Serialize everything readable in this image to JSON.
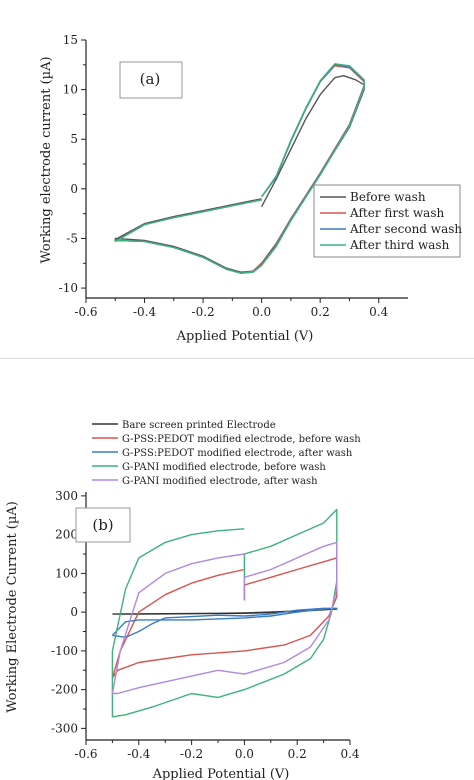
{
  "chart_data": [
    {
      "type": "line",
      "panel_label": "(a)",
      "xlabel": "Applied Potential (V)",
      "ylabel": "Working electrode current (µA)",
      "xlim": [
        -0.6,
        0.5
      ],
      "ylim": [
        -11,
        15
      ],
      "xticks": [
        -0.6,
        -0.4,
        -0.2,
        0.0,
        0.2,
        0.4
      ],
      "xticklabels": [
        "-0.6",
        "-0.4",
        "-0.2",
        "0.0",
        "0.2",
        "0.4"
      ],
      "yticks": [
        -10,
        -5,
        0,
        5,
        10,
        15
      ],
      "yticklabels": [
        "-10",
        "-5",
        "0",
        "5",
        "10",
        "15"
      ],
      "legend_position": "right",
      "series": [
        {
          "name": "Before wash",
          "color": "#555555",
          "x": [
            0.0,
            0.05,
            0.1,
            0.15,
            0.2,
            0.25,
            0.28,
            0.32,
            0.35,
            0.35,
            0.3,
            0.2,
            0.1,
            0.05,
            0.0,
            -0.03,
            -0.07,
            -0.12,
            -0.2,
            -0.3,
            -0.4,
            -0.5,
            -0.5,
            -0.4,
            -0.3,
            -0.2,
            -0.1,
            -0.05,
            0.0
          ],
          "y": [
            -1.8,
            1.0,
            4.0,
            7.0,
            9.5,
            11.2,
            11.4,
            11.0,
            10.5,
            10.0,
            6.2,
            1.5,
            -3.0,
            -5.5,
            -7.5,
            -8.3,
            -8.4,
            -8.0,
            -6.8,
            -5.8,
            -5.2,
            -5.0,
            -5.1,
            -3.5,
            -2.8,
            -2.2,
            -1.6,
            -1.3,
            -1.0
          ]
        },
        {
          "name": "After first wash",
          "color": "#d9534f",
          "x": [
            0.0,
            0.05,
            0.1,
            0.15,
            0.2,
            0.25,
            0.3,
            0.35,
            0.35,
            0.3,
            0.2,
            0.1,
            0.05,
            0.0,
            -0.03,
            -0.07,
            -0.12,
            -0.2,
            -0.3,
            -0.4,
            -0.5,
            -0.5,
            -0.4,
            -0.3,
            -0.2,
            -0.1,
            -0.05,
            0.0
          ],
          "y": [
            -0.8,
            1.2,
            4.8,
            8.0,
            10.8,
            12.4,
            12.2,
            10.8,
            10.4,
            6.5,
            1.6,
            -3.0,
            -5.6,
            -7.6,
            -8.3,
            -8.5,
            -8.1,
            -6.9,
            -5.9,
            -5.3,
            -5.2,
            -5.3,
            -3.6,
            -2.9,
            -2.3,
            -1.7,
            -1.4,
            -1.1
          ]
        },
        {
          "name": "After second wash",
          "color": "#3a7cc6",
          "x": [
            0.0,
            0.05,
            0.1,
            0.15,
            0.2,
            0.25,
            0.3,
            0.35,
            0.35,
            0.3,
            0.2,
            0.1,
            0.05,
            0.0,
            -0.03,
            -0.07,
            -0.12,
            -0.2,
            -0.3,
            -0.4,
            -0.5,
            -0.5,
            -0.4,
            -0.3,
            -0.2,
            -0.1,
            -0.05,
            0.0
          ],
          "y": [
            -0.8,
            1.2,
            4.8,
            8.0,
            10.8,
            12.5,
            12.3,
            10.9,
            10.3,
            6.4,
            1.5,
            -3.1,
            -5.7,
            -7.7,
            -8.4,
            -8.5,
            -8.1,
            -6.9,
            -5.9,
            -5.3,
            -5.2,
            -5.3,
            -3.6,
            -2.9,
            -2.3,
            -1.7,
            -1.4,
            -1.1
          ]
        },
        {
          "name": "After third wash",
          "color": "#3db37a",
          "x": [
            0.0,
            0.05,
            0.1,
            0.15,
            0.2,
            0.25,
            0.3,
            0.35,
            0.35,
            0.3,
            0.2,
            0.1,
            0.05,
            0.0,
            -0.03,
            -0.07,
            -0.12,
            -0.2,
            -0.3,
            -0.4,
            -0.5,
            -0.5,
            -0.4,
            -0.3,
            -0.2,
            -0.1,
            -0.05,
            0.0
          ],
          "y": [
            -0.8,
            1.3,
            4.9,
            8.1,
            10.9,
            12.6,
            12.4,
            11.0,
            10.2,
            6.3,
            1.4,
            -3.2,
            -5.8,
            -7.7,
            -8.4,
            -8.5,
            -8.1,
            -6.9,
            -5.9,
            -5.3,
            -5.2,
            -5.3,
            -3.6,
            -2.9,
            -2.3,
            -1.7,
            -1.4,
            -1.1
          ]
        }
      ]
    },
    {
      "type": "line",
      "panel_label": "(b)",
      "xlabel": "Applied Potential (V)",
      "ylabel": "Working Electrode Current (µA)",
      "xlim": [
        -0.6,
        0.4
      ],
      "ylim": [
        -330,
        310
      ],
      "xticks": [
        -0.6,
        -0.4,
        -0.2,
        0.0,
        0.2,
        0.4
      ],
      "xticklabels": [
        "-0.6",
        "-0.4",
        "-0.2",
        "0.0",
        "0.2",
        "0.4"
      ],
      "yticks": [
        -300,
        -200,
        -100,
        0,
        100,
        200,
        300
      ],
      "yticklabels": [
        "-300",
        "-200",
        "-100",
        "0",
        "100",
        "200",
        "300"
      ],
      "legend_position": "top",
      "series": [
        {
          "name": "Bare screen printed Electrode",
          "color": "#333333",
          "x": [
            -0.5,
            -0.3,
            -0.1,
            0.0,
            0.1,
            0.2,
            0.3,
            0.35,
            0.3,
            0.2,
            0.1,
            0.0,
            -0.2,
            -0.4,
            -0.5
          ],
          "y": [
            -5,
            -4,
            -3,
            -2,
            0,
            3,
            6,
            8,
            6,
            2,
            -1,
            -3,
            -4,
            -5,
            -5
          ]
        },
        {
          "name": "G-PSS:PEDOT modified electrode, before wash",
          "color": "#d9534f",
          "x": [
            0.0,
            -0.1,
            -0.2,
            -0.3,
            -0.4,
            -0.47,
            -0.5,
            -0.48,
            -0.4,
            -0.2,
            0.0,
            0.15,
            0.25,
            0.32,
            0.35,
            0.35,
            0.3,
            0.2,
            0.1,
            0.0,
            0.0
          ],
          "y": [
            110,
            95,
            75,
            45,
            0,
            -100,
            -170,
            -150,
            -130,
            -110,
            -100,
            -85,
            -60,
            -10,
            40,
            140,
            130,
            110,
            90,
            70,
            30
          ]
        },
        {
          "name": "G-PSS:PEDOT modified electrode, after wash",
          "color": "#3a7cc6",
          "x": [
            -0.5,
            -0.45,
            -0.4,
            -0.35,
            -0.3,
            -0.1,
            0.0,
            0.1,
            0.2,
            0.3,
            0.35,
            0.3,
            0.2,
            0.1,
            0.0,
            -0.2,
            -0.4,
            -0.45,
            -0.5
          ],
          "y": [
            -60,
            -65,
            -50,
            -30,
            -15,
            -8,
            -10,
            -5,
            5,
            10,
            10,
            8,
            0,
            -10,
            -15,
            -20,
            -20,
            -25,
            -60
          ]
        },
        {
          "name": "G-PANI modified electrode, before wash",
          "color": "#3db37a",
          "x": [
            0.0,
            -0.1,
            -0.2,
            -0.3,
            -0.4,
            -0.45,
            -0.5,
            -0.5,
            -0.45,
            -0.35,
            -0.2,
            -0.1,
            0.0,
            0.15,
            0.25,
            0.3,
            0.33,
            0.35,
            0.35,
            0.3,
            0.2,
            0.1,
            0.0,
            0.0
          ],
          "y": [
            215,
            210,
            200,
            180,
            140,
            60,
            -100,
            -270,
            -265,
            -245,
            -210,
            -220,
            -200,
            -160,
            -120,
            -70,
            0,
            80,
            265,
            230,
            200,
            170,
            150,
            30
          ]
        },
        {
          "name": "G-PANI modified electrode, after wash",
          "color": "#b088e0",
          "x": [
            0.0,
            -0.1,
            -0.2,
            -0.3,
            -0.4,
            -0.47,
            -0.5,
            -0.48,
            -0.4,
            -0.2,
            -0.1,
            0.0,
            0.15,
            0.25,
            0.32,
            0.35,
            0.35,
            0.3,
            0.2,
            0.1,
            0.0,
            0.0
          ],
          "y": [
            150,
            140,
            125,
            100,
            50,
            -100,
            -210,
            -210,
            -195,
            -165,
            -150,
            -160,
            -130,
            -90,
            -20,
            60,
            180,
            170,
            140,
            110,
            90,
            30
          ]
        }
      ]
    }
  ]
}
